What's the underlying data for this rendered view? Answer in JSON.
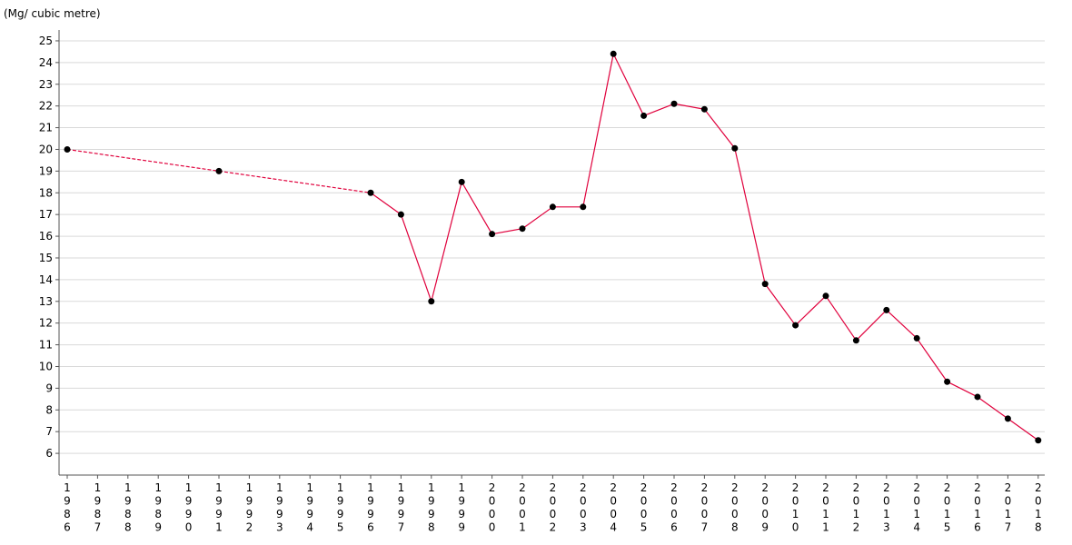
{
  "chart_data": {
    "type": "line",
    "unit_label": "(Mg/ cubic metre)",
    "xlabel": "",
    "ylabel": "",
    "categories": [
      "1986",
      "1987",
      "1988",
      "1989",
      "1990",
      "1991",
      "1992",
      "1993",
      "1994",
      "1995",
      "1996",
      "1997",
      "1998",
      "1999",
      "2000",
      "2001",
      "2002",
      "2003",
      "2004",
      "2005",
      "2006",
      "2007",
      "2008",
      "2009",
      "2010",
      "2011",
      "2012",
      "2013",
      "2014",
      "2015",
      "2016",
      "2017",
      "2018"
    ],
    "ylim": [
      5,
      25.5
    ],
    "yticks": [
      6,
      7,
      8,
      9,
      10,
      11,
      12,
      13,
      14,
      15,
      16,
      17,
      18,
      19,
      20,
      21,
      22,
      23,
      24,
      25
    ],
    "grid": "horizontal",
    "series": [
      {
        "color": "#e0003c",
        "points": [
          {
            "x": "1986",
            "y": 20.0
          },
          {
            "x": "1991",
            "y": 19.0
          },
          {
            "x": "1996",
            "y": 18.0
          },
          {
            "x": "1997",
            "y": 17.0
          },
          {
            "x": "1998",
            "y": 13.0
          },
          {
            "x": "1999",
            "y": 18.5
          },
          {
            "x": "2000",
            "y": 16.1
          },
          {
            "x": "2001",
            "y": 16.35
          },
          {
            "x": "2002",
            "y": 17.35
          },
          {
            "x": "2003",
            "y": 17.35
          },
          {
            "x": "2004",
            "y": 24.4
          },
          {
            "x": "2005",
            "y": 21.55
          },
          {
            "x": "2006",
            "y": 22.1
          },
          {
            "x": "2007",
            "y": 21.85
          },
          {
            "x": "2008",
            "y": 20.05
          },
          {
            "x": "2009",
            "y": 13.8
          },
          {
            "x": "2010",
            "y": 11.9
          },
          {
            "x": "2011",
            "y": 13.25
          },
          {
            "x": "2012",
            "y": 11.2
          },
          {
            "x": "2013",
            "y": 12.6
          },
          {
            "x": "2014",
            "y": 11.3
          },
          {
            "x": "2015",
            "y": 9.3
          },
          {
            "x": "2016",
            "y": 8.6
          },
          {
            "x": "2017",
            "y": 7.6
          },
          {
            "x": "2018",
            "y": 6.6
          }
        ],
        "dashed_segments": [
          [
            "1986",
            "1991"
          ],
          [
            "1991",
            "1996"
          ]
        ]
      }
    ]
  }
}
